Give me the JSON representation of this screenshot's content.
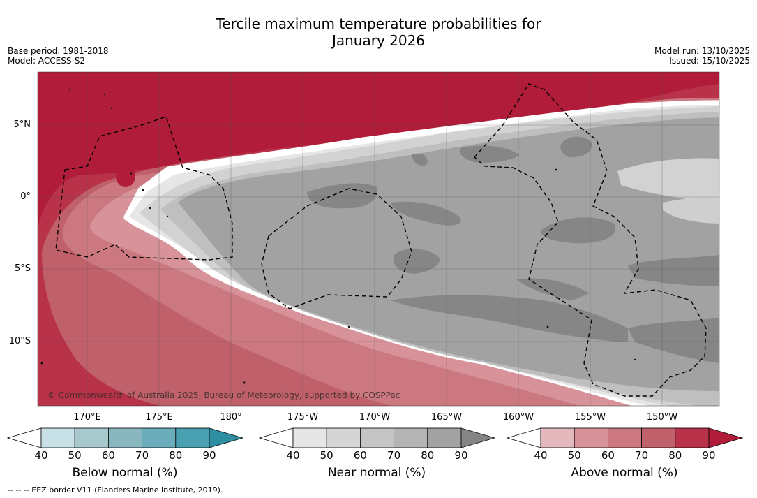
{
  "title_line1": "Tercile maximum temperature probabilities for",
  "title_line2": "January 2026",
  "base_period": "Base period: 1981-2018",
  "model": "Model: ACCESS-S2",
  "model_run": "Model run: 13/10/2025",
  "issued": "Issued: 15/10/2025",
  "latitudes": [
    "5°N",
    "0°",
    "5°S",
    "10°S"
  ],
  "longitudes": [
    "170°E",
    "175°E",
    "180°",
    "175°W",
    "170°W",
    "165°W",
    "160°W",
    "155°W",
    "150°W"
  ],
  "copyright": "© Commonwealth of Australia 2025, Bureau of Meteorology, supported by COSPPac",
  "footnote": "--  --  -- EEZ border V11 (Flanders Marine Institute, 2019).",
  "colorbars": [
    {
      "label": "Below normal (%)",
      "ticks": [
        "40",
        "50",
        "60",
        "70",
        "80",
        "90"
      ],
      "colors": [
        "#ffffff",
        "#c8e1e6",
        "#a7c8cc",
        "#89b7c0",
        "#6aacb9",
        "#48a0b0",
        "#2e8fa3"
      ]
    },
    {
      "label": "Near normal (%)",
      "ticks": [
        "40",
        "50",
        "60",
        "70",
        "80",
        "90"
      ],
      "colors": [
        "#ffffff",
        "#e6e6e6",
        "#d5d5d5",
        "#c5c5c5",
        "#b5b5b5",
        "#a2a2a2",
        "#858585"
      ]
    },
    {
      "label": "Above normal (%)",
      "ticks": [
        "40",
        "50",
        "60",
        "70",
        "80",
        "90"
      ],
      "colors": [
        "#ffffff",
        "#e3b9bd",
        "#d7929a",
        "#cb7880",
        "#c0606a",
        "#b83249",
        "#b01c39"
      ]
    }
  ],
  "zone_colors": {
    "above90": "#b01c39",
    "above80": "#b83249",
    "above70": "#c0606a",
    "above60": "#cb7880",
    "above50": "#d7929a",
    "near_white": "#ffffff",
    "near50": "#e6e6e6",
    "near60": "#d2d2d2",
    "near70": "#bfbfbf",
    "near80": "#a2a2a2",
    "near90": "#868686"
  }
}
